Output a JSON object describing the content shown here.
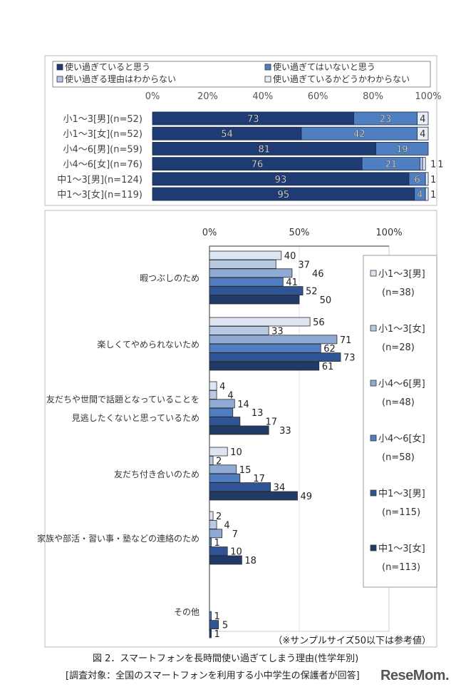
{
  "chart_data": [
    {
      "type": "bar",
      "orientation": "horizontal",
      "stacked": true,
      "categories": [
        "小1～3[男](n=52)",
        "小1～3[女](n=52)",
        "小4～6[男](n=59)",
        "小4～6[女](n=76)",
        "中1～3[男](n=124)",
        "中1～3[女](n=119)"
      ],
      "series": [
        {
          "name": "使い過ぎていると思う",
          "values": [
            73,
            54,
            81,
            76,
            93,
            95
          ]
        },
        {
          "name": "使い過ぎてはいないと思う",
          "values": [
            23,
            42,
            19,
            21,
            6,
            4
          ]
        },
        {
          "name": "使い過ぎる理由はわからない",
          "values": [
            0,
            0,
            0,
            1,
            0,
            0
          ]
        },
        {
          "name": "使い過ぎているかどうかわからない",
          "values": [
            4,
            4,
            0,
            1,
            1,
            1
          ]
        }
      ],
      "colors": [
        "#1f3b73",
        "#4f7fc1",
        "#b4c7e7",
        "#e9eef6"
      ],
      "xticks": [
        "0%",
        "20%",
        "40%",
        "60%",
        "80%",
        "100%"
      ],
      "xlim": [
        0,
        100
      ],
      "legend": "top"
    },
    {
      "type": "bar",
      "orientation": "horizontal",
      "categories": [
        "暇つぶしのため",
        "楽しくてやめられないため",
        "友だちや世間で話題となっていることを|見逃したくないと思っているため",
        "友だち付き合いのため",
        "家族や部活・習い事・塾などの連絡のため",
        "その他"
      ],
      "series": [
        {
          "name": "小1～3[男]",
          "n": "(n=38)",
          "values": [
            40,
            56,
            4,
            10,
            2,
            null
          ]
        },
        {
          "name": "小1～3[女]",
          "n": "(n=28)",
          "values": [
            37,
            33,
            4,
            2,
            4,
            null
          ]
        },
        {
          "name": "小4～6[男]",
          "n": "(n=48)",
          "values": [
            46,
            71,
            14,
            15,
            7,
            null
          ]
        },
        {
          "name": "小4～6[女]",
          "n": "(n=58)",
          "values": [
            41,
            62,
            13,
            17,
            1,
            1
          ]
        },
        {
          "name": "中1～3[男]",
          "n": "(n=115)",
          "values": [
            52,
            73,
            17,
            34,
            10,
            5
          ]
        },
        {
          "name": "中1～3[女]",
          "n": "(n=113)",
          "values": [
            50,
            61,
            33,
            49,
            18,
            1
          ]
        }
      ],
      "colors": [
        "#dce5f1",
        "#b8c9e3",
        "#8faad5",
        "#4f7fc1",
        "#2f5596",
        "#213a66"
      ],
      "xticks": [
        "0%",
        "50%",
        "100%"
      ],
      "xlim": [
        0,
        100
      ],
      "legend": "right",
      "note": "（※サンプルサイズ50以下は参考値）"
    }
  ],
  "caption": {
    "title": "図 2．スマートフォンを長時間使い過ぎてしまう理由(性学年別)",
    "subtitle": "[調査対象：全国のスマートフォンを利用する小中学生の保護者が回答]"
  },
  "watermark": "ReseMom"
}
